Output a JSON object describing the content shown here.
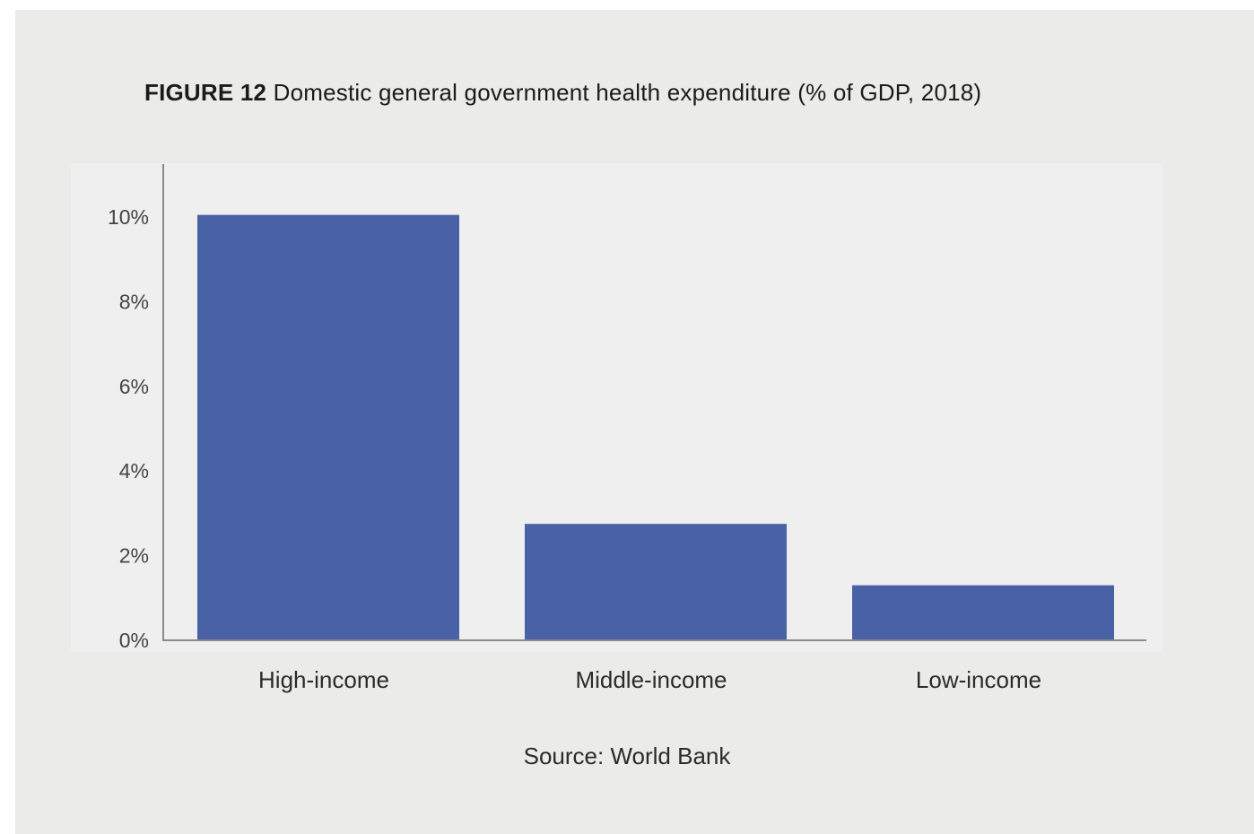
{
  "figure": {
    "label": "FIGURE 12",
    "title": "Domestic general government health expenditure (% of GDP, 2018)",
    "source": "Source: World Bank"
  },
  "colors": {
    "bar": "#4961a5",
    "panel_background": "#ebebea",
    "plot_background": "#efefef",
    "axis": "#8a8a8a"
  },
  "chart_data": {
    "type": "bar",
    "title": "Domestic general government health expenditure (% of GDP, 2018)",
    "xlabel": "",
    "ylabel": "",
    "categories": [
      "High-income",
      "Middle-income",
      "Low-income"
    ],
    "values": [
      10.05,
      2.75,
      1.3
    ],
    "ylim": [
      0,
      10
    ],
    "yticks": [
      0,
      2,
      4,
      6,
      8,
      10
    ],
    "ytick_labels": [
      "0%",
      "2%",
      "4%",
      "6%",
      "8%",
      "10%"
    ],
    "grid": false,
    "legend": "none"
  }
}
